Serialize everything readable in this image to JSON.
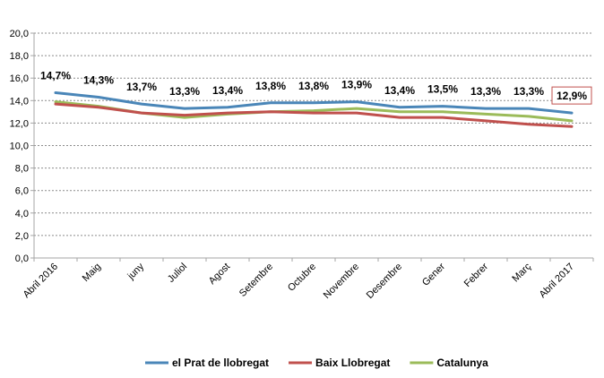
{
  "chart_data": {
    "type": "line",
    "categories": [
      "Abril 2016",
      "Maig",
      "juny",
      "Juliol",
      "Agost",
      "Setembre",
      "Octubre",
      "Novembre",
      "Desembre",
      "Gener",
      "Febrer",
      "Març",
      "Abril 2017"
    ],
    "series": [
      {
        "name": "el Prat de llobregat",
        "color": "#4a86b8",
        "values": [
          14.7,
          14.3,
          13.7,
          13.3,
          13.4,
          13.8,
          13.8,
          13.9,
          13.4,
          13.5,
          13.3,
          13.3,
          12.9
        ]
      },
      {
        "name": "Baix Llobregat",
        "color": "#c0504d",
        "values": [
          13.7,
          13.4,
          12.9,
          12.7,
          12.9,
          13.0,
          12.9,
          12.9,
          12.5,
          12.5,
          12.2,
          11.9,
          11.7
        ]
      },
      {
        "name": "Catalunya",
        "color": "#9bbb59",
        "values": [
          13.9,
          13.5,
          12.9,
          12.5,
          12.8,
          13.0,
          13.1,
          13.3,
          13.0,
          13.0,
          12.8,
          12.6,
          12.2
        ]
      }
    ],
    "data_labels": [
      "14,7%",
      "14,3%",
      "13,7%",
      "13,3%",
      "13,4%",
      "13,8%",
      "13,8%",
      "13,9%",
      "13,4%",
      "13,5%",
      "13,3%",
      "13,3%",
      "12,9%"
    ],
    "y_ticks": [
      "0,0",
      "2,0",
      "4,0",
      "6,0",
      "8,0",
      "10,0",
      "12,0",
      "14,0",
      "16,0",
      "18,0",
      "20,0"
    ],
    "ylim": [
      0,
      20
    ],
    "grid": true,
    "legend_position": "bottom",
    "highlight_border_color": "#c0504d"
  }
}
